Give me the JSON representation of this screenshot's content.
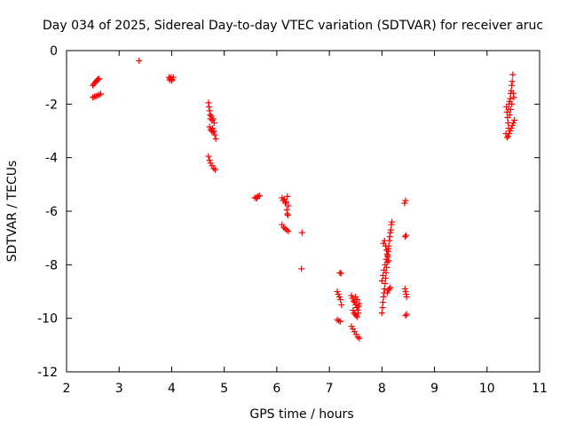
{
  "chart_data": {
    "type": "scatter",
    "title": "Day 034 of 2025, Sidereal Day-to-day VTEC variation (SDTVAR) for receiver aruc",
    "xlabel": "GPS time / hours",
    "ylabel": "SDTVAR / TECUs",
    "xlim": [
      2,
      11
    ],
    "ylim": [
      -12,
      0
    ],
    "xticks": [
      "2",
      "3",
      "4",
      "5",
      "6",
      "7",
      "8",
      "9",
      "10",
      "11"
    ],
    "yticks": [
      "0",
      "-2",
      "-4",
      "-6",
      "-8",
      "-10",
      "-12"
    ],
    "marker": "+",
    "color": "#ff0000",
    "series": [
      {
        "name": "SDTVAR",
        "points": [
          [
            2.5,
            -1.3
          ],
          [
            2.52,
            -1.25
          ],
          [
            2.54,
            -1.2
          ],
          [
            2.56,
            -1.15
          ],
          [
            2.58,
            -1.1
          ],
          [
            2.6,
            -1.08
          ],
          [
            2.62,
            -1.05
          ],
          [
            2.5,
            -1.75
          ],
          [
            2.53,
            -1.72
          ],
          [
            2.56,
            -1.7
          ],
          [
            2.59,
            -1.68
          ],
          [
            2.62,
            -1.65
          ],
          [
            2.65,
            -1.62
          ],
          [
            3.38,
            -0.38
          ],
          [
            3.95,
            -1.0
          ],
          [
            3.97,
            -1.05
          ],
          [
            3.99,
            -1.0
          ],
          [
            4.01,
            -1.08
          ],
          [
            4.03,
            -1.0
          ],
          [
            3.96,
            -1.1
          ],
          [
            4.0,
            -1.12
          ],
          [
            4.7,
            -1.95
          ],
          [
            4.71,
            -2.1
          ],
          [
            4.72,
            -2.25
          ],
          [
            4.73,
            -2.4
          ],
          [
            4.74,
            -2.55
          ],
          [
            4.75,
            -2.45
          ],
          [
            4.77,
            -2.6
          ],
          [
            4.79,
            -2.55
          ],
          [
            4.81,
            -2.7
          ],
          [
            4.72,
            -2.85
          ],
          [
            4.74,
            -2.95
          ],
          [
            4.76,
            -3.0
          ],
          [
            4.79,
            -3.05
          ],
          [
            4.82,
            -3.15
          ],
          [
            4.84,
            -3.3
          ],
          [
            4.78,
            -2.9
          ],
          [
            4.8,
            -3.0
          ],
          [
            4.7,
            -3.95
          ],
          [
            4.72,
            -4.1
          ],
          [
            4.74,
            -4.2
          ],
          [
            4.77,
            -4.3
          ],
          [
            4.8,
            -4.4
          ],
          [
            4.83,
            -4.45
          ],
          [
            5.58,
            -5.5
          ],
          [
            5.61,
            -5.48
          ],
          [
            5.64,
            -5.45
          ],
          [
            5.67,
            -5.42
          ],
          [
            5.62,
            -5.52
          ],
          [
            6.1,
            -5.5
          ],
          [
            6.12,
            -5.6
          ],
          [
            6.14,
            -5.55
          ],
          [
            6.16,
            -5.7
          ],
          [
            6.18,
            -5.65
          ],
          [
            6.2,
            -5.45
          ],
          [
            6.22,
            -5.8
          ],
          [
            6.19,
            -5.95
          ],
          [
            6.2,
            -6.1
          ],
          [
            6.21,
            -6.15
          ],
          [
            6.1,
            -6.5
          ],
          [
            6.13,
            -6.6
          ],
          [
            6.16,
            -6.65
          ],
          [
            6.19,
            -6.7
          ],
          [
            6.22,
            -6.75
          ],
          [
            6.48,
            -6.8
          ],
          [
            6.47,
            -8.15
          ],
          [
            7.15,
            -9.0
          ],
          [
            7.17,
            -9.1
          ],
          [
            7.19,
            -9.2
          ],
          [
            7.21,
            -9.3
          ],
          [
            7.23,
            -9.5
          ],
          [
            7.2,
            -8.3
          ],
          [
            7.22,
            -8.32
          ],
          [
            7.15,
            -10.05
          ],
          [
            7.18,
            -10.1
          ],
          [
            7.21,
            -10.12
          ],
          [
            7.42,
            -9.15
          ],
          [
            7.44,
            -9.25
          ],
          [
            7.46,
            -9.35
          ],
          [
            7.48,
            -9.4
          ],
          [
            7.5,
            -9.5
          ],
          [
            7.52,
            -9.6
          ],
          [
            7.54,
            -9.7
          ],
          [
            7.56,
            -9.55
          ],
          [
            7.45,
            -9.7
          ],
          [
            7.47,
            -9.8
          ],
          [
            7.49,
            -9.85
          ],
          [
            7.51,
            -9.9
          ],
          [
            7.53,
            -9.95
          ],
          [
            7.55,
            -9.8
          ],
          [
            7.57,
            -9.45
          ],
          [
            7.5,
            -9.2
          ],
          [
            7.53,
            -9.3
          ],
          [
            7.42,
            -10.3
          ],
          [
            7.45,
            -10.4
          ],
          [
            7.48,
            -10.5
          ],
          [
            7.51,
            -10.6
          ],
          [
            7.54,
            -10.7
          ],
          [
            7.57,
            -10.75
          ],
          [
            8.0,
            -9.8
          ],
          [
            8.01,
            -9.6
          ],
          [
            8.02,
            -9.4
          ],
          [
            8.03,
            -9.2
          ],
          [
            8.04,
            -9.05
          ],
          [
            8.05,
            -8.9
          ],
          [
            8.06,
            -8.7
          ],
          [
            8.07,
            -8.5
          ],
          [
            8.08,
            -8.3
          ],
          [
            8.09,
            -8.1
          ],
          [
            8.1,
            -7.9
          ],
          [
            8.11,
            -7.7
          ],
          [
            8.12,
            -7.5
          ],
          [
            8.13,
            -7.3
          ],
          [
            8.14,
            -7.1
          ],
          [
            8.15,
            -6.95
          ],
          [
            8.16,
            -6.8
          ],
          [
            8.17,
            -6.7
          ],
          [
            8.18,
            -6.5
          ],
          [
            8.19,
            -6.4
          ],
          [
            8.0,
            -8.6
          ],
          [
            8.02,
            -8.4
          ],
          [
            8.04,
            -8.2
          ],
          [
            8.06,
            -8.0
          ],
          [
            8.08,
            -7.8
          ],
          [
            8.1,
            -7.6
          ],
          [
            8.12,
            -7.4
          ],
          [
            8.03,
            -7.2
          ],
          [
            8.05,
            -7.1
          ],
          [
            8.07,
            -7.3
          ],
          [
            8.09,
            -7.45
          ],
          [
            8.11,
            -7.65
          ],
          [
            8.13,
            -7.85
          ],
          [
            8.1,
            -9.05
          ],
          [
            8.12,
            -8.95
          ],
          [
            8.14,
            -8.9
          ],
          [
            8.16,
            -8.85
          ],
          [
            8.45,
            -5.6
          ],
          [
            8.43,
            -5.7
          ],
          [
            8.46,
            -6.9
          ],
          [
            8.44,
            -6.95
          ],
          [
            8.44,
            -8.9
          ],
          [
            8.45,
            -9.0
          ],
          [
            8.46,
            -9.1
          ],
          [
            8.47,
            -9.2
          ],
          [
            8.45,
            -9.9
          ],
          [
            8.47,
            -9.85
          ],
          [
            10.37,
            -2.1
          ],
          [
            10.38,
            -2.3
          ],
          [
            10.39,
            -2.5
          ],
          [
            10.4,
            -2.7
          ],
          [
            10.41,
            -2.9
          ],
          [
            10.42,
            -2.0
          ],
          [
            10.43,
            -1.9
          ],
          [
            10.44,
            -1.8
          ],
          [
            10.45,
            -1.6
          ],
          [
            10.46,
            -1.5
          ],
          [
            10.47,
            -1.3
          ],
          [
            10.48,
            -1.15
          ],
          [
            10.49,
            -0.9
          ],
          [
            10.5,
            -1.6
          ],
          [
            10.51,
            -1.75
          ],
          [
            10.52,
            -2.6
          ],
          [
            10.5,
            -2.7
          ],
          [
            10.48,
            -2.8
          ],
          [
            10.46,
            -2.9
          ],
          [
            10.44,
            -3.0
          ],
          [
            10.42,
            -3.1
          ],
          [
            10.4,
            -3.2
          ],
          [
            10.38,
            -3.25
          ],
          [
            10.36,
            -3.1
          ],
          [
            10.45,
            -2.2
          ],
          [
            10.47,
            -2.0
          ],
          [
            10.43,
            -2.4
          ],
          [
            10.41,
            -2.2
          ]
        ]
      }
    ]
  }
}
